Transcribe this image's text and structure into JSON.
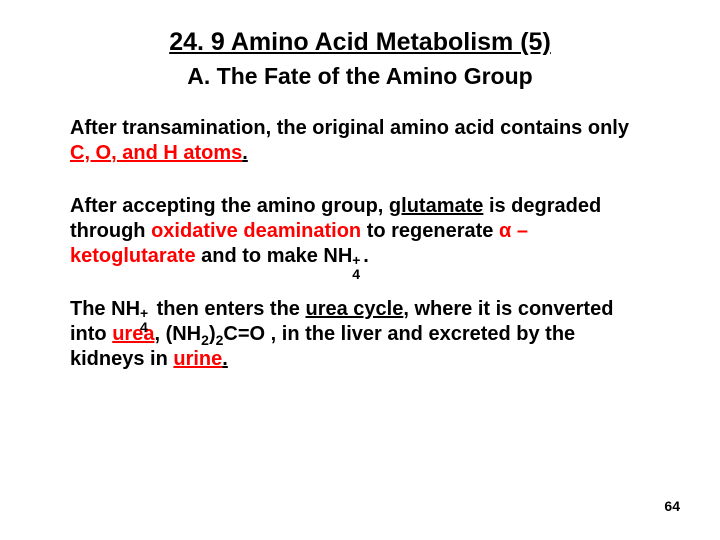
{
  "title": "24. 9 Amino Acid Metabolism (5)",
  "subtitle": "A. The Fate of the Amino Group",
  "p1_a": "After transamination, the original amino acid contains only ",
  "p1_b": "C, O, and H atoms",
  "p1_c": ".",
  "p2_a": "After accepting the amino group, ",
  "p2_b": "glutamate",
  "p2_c": " is degraded through ",
  "p2_d": "oxidative deamination",
  "p2_e": " to regenerate ",
  "p2_f": "α – ketoglutarate",
  "p2_g": "  and to make ",
  "p2_nh": "NH",
  "p2_h": ".",
  "p3_a": "The ",
  "p3_nh": "NH",
  "p3_b": " then enters the ",
  "p3_c": "urea cycle",
  "p3_d": ", where it is converted into ",
  "p3_e": "urea",
  "p3_f": ", (NH",
  "p3_g": ")",
  "p3_h": "C=O , in the liver and excreted by the kidneys in ",
  "p3_i": "urine",
  "p3_j": ".",
  "two": "2",
  "plus": "+",
  "four": "4",
  "pagenum": "64"
}
